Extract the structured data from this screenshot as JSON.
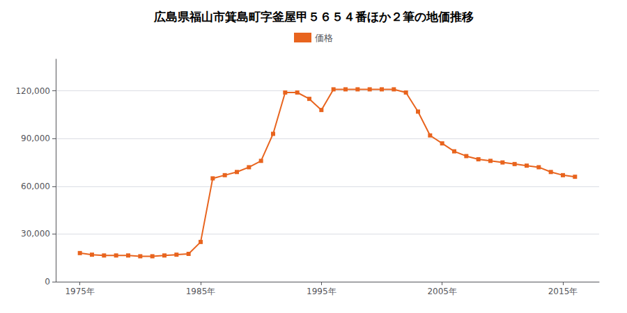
{
  "chart_data": {
    "type": "line",
    "title": "広島県福山市箕島町字釜屋甲５６５４番ほか２筆の地価推移",
    "x": [
      1975,
      1976,
      1977,
      1978,
      1979,
      1980,
      1981,
      1982,
      1983,
      1984,
      1985,
      1986,
      1987,
      1988,
      1989,
      1990,
      1991,
      1992,
      1993,
      1994,
      1995,
      1996,
      1997,
      1998,
      1999,
      2000,
      2001,
      2002,
      2003,
      2004,
      2005,
      2006,
      2007,
      2008,
      2009,
      2010,
      2011,
      2012,
      2013,
      2014,
      2015,
      2016
    ],
    "series": [
      {
        "name": "価格",
        "color": "#e8641e",
        "marker": "square",
        "values": [
          18000,
          17000,
          16500,
          16500,
          16500,
          16000,
          16000,
          16500,
          17000,
          17500,
          25000,
          65000,
          67000,
          69000,
          72000,
          76000,
          93000,
          119000,
          119000,
          115000,
          108000,
          121000,
          121000,
          121000,
          121000,
          121000,
          121000,
          119000,
          107000,
          92000,
          87000,
          82000,
          79000,
          77000,
          76000,
          75000,
          74000,
          73000,
          72000,
          69000,
          67000,
          66000
        ]
      }
    ],
    "xlim": [
      1973,
      2018
    ],
    "xticks": [
      {
        "value": 1975,
        "label": "1975年"
      },
      {
        "value": 1985,
        "label": "1985年"
      },
      {
        "value": 1995,
        "label": "1995年"
      },
      {
        "value": 2005,
        "label": "2005年"
      },
      {
        "value": 2015,
        "label": "2015年"
      }
    ],
    "ylim": [
      0,
      140000
    ],
    "yticks": [
      0,
      {
        "value": 30000,
        "label": "30,000"
      },
      {
        "value": 60000,
        "label": "60,000"
      },
      {
        "value": 90000,
        "label": "90,000"
      },
      {
        "value": 120000,
        "label": "120,000"
      }
    ],
    "grid": "y",
    "legend": "top"
  }
}
